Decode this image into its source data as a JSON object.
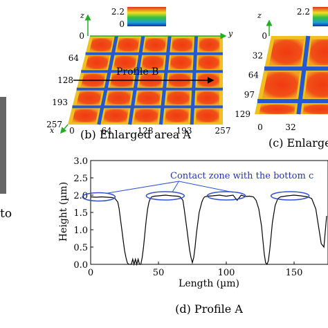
{
  "left_fragment": {
    "text": "to"
  },
  "panel_b": {
    "colorbar": {
      "max": "2.2",
      "min": "0"
    },
    "axis_z": "z",
    "axis_y": "y",
    "axis_x": "x",
    "left_ticks": [
      "0",
      "64",
      "128",
      "193",
      "257"
    ],
    "bottom_ticks": [
      "0",
      "64",
      "128",
      "193",
      "257"
    ],
    "profile_label": "Profile B",
    "caption": "(b) Enlarged area A"
  },
  "panel_c": {
    "colorbar": {
      "max": "2.2",
      "min": "0"
    },
    "axis_z": "z",
    "left_ticks": [
      "0",
      "32",
      "64",
      "97",
      "129"
    ],
    "bottom_ticks": [
      "0",
      "32"
    ],
    "caption": "(c) Enlarge"
  },
  "panel_d": {
    "caption": "(d) Profile A",
    "annotation": "Contact zone with the bottom c",
    "chart_data": {
      "type": "line",
      "xlabel": "Length (µm)",
      "ylabel": "Height (µm)",
      "xlim": [
        0,
        175
      ],
      "ylim": [
        0,
        3.0
      ],
      "x_ticks": [
        "0",
        "50",
        "100",
        "150"
      ],
      "y_ticks": [
        "0.0",
        "0.5",
        "1.0",
        "1.5",
        "2.0",
        "2.5",
        "3.0"
      ],
      "series": [
        {
          "x": [
            0,
            4,
            8,
            12,
            16,
            18,
            20,
            21,
            22,
            23,
            24,
            25,
            26,
            27,
            28,
            29,
            30,
            31,
            32,
            33,
            34,
            35,
            36,
            37,
            38,
            39,
            40,
            41,
            42,
            43,
            44,
            45,
            47,
            50,
            55,
            60,
            64,
            66,
            68,
            69,
            70,
            71,
            72,
            73,
            74,
            75,
            76,
            77,
            78,
            80,
            82,
            83,
            84,
            86,
            90,
            95,
            100,
            105,
            108,
            111,
            114,
            117,
            120,
            122,
            124,
            126,
            127,
            128,
            129,
            130,
            131,
            132,
            133,
            134,
            136,
            138,
            140,
            145,
            150,
            155,
            160,
            163,
            166,
            168,
            170,
            172,
            174
          ],
          "y": [
            1.95,
            1.94,
            1.95,
            1.94,
            1.93,
            1.9,
            1.8,
            1.6,
            1.3,
            1.0,
            0.7,
            0.4,
            0.2,
            0.05,
            0.0,
            0.0,
            0.0,
            0.15,
            0.0,
            0.15,
            0.0,
            0.15,
            0.0,
            0.0,
            0.2,
            0.5,
            0.9,
            1.3,
            1.6,
            1.8,
            1.9,
            1.95,
            1.97,
            1.98,
            2.0,
            1.98,
            1.97,
            1.95,
            1.85,
            1.6,
            1.3,
            1.0,
            0.7,
            0.4,
            0.2,
            0.05,
            0.2,
            0.5,
            0.9,
            1.5,
            1.8,
            1.9,
            1.95,
            1.97,
            1.98,
            2.0,
            1.97,
            2.0,
            1.85,
            2.0,
            1.96,
            1.97,
            1.95,
            1.85,
            1.6,
            1.1,
            0.7,
            0.3,
            0.05,
            0.0,
            0.1,
            0.4,
            0.8,
            1.2,
            1.7,
            1.9,
            1.95,
            1.98,
            2.0,
            1.98,
            1.95,
            1.9,
            1.6,
            1.1,
            0.6,
            0.5,
            1.4
          ]
        }
      ]
    }
  },
  "colors": {
    "map_background": "#f0c020",
    "cell": "#f04010",
    "channel": "#2060d0",
    "ellipse": "#3050d0",
    "annotation_text": "#2030d0"
  }
}
